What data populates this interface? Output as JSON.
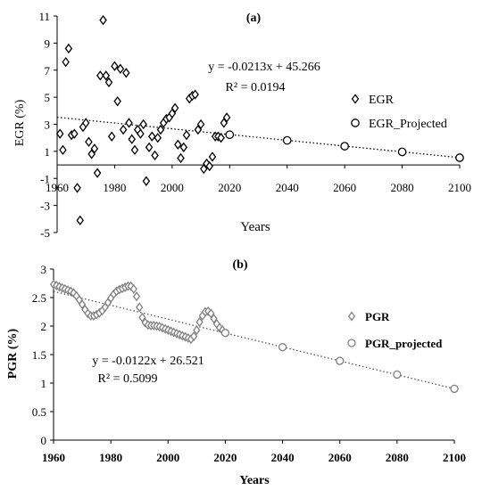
{
  "chart_data": [
    {
      "panel": "(a)",
      "type": "scatter",
      "xlabel": "Years",
      "ylabel": "EGR (%)",
      "xlim": [
        1960,
        2100
      ],
      "ylim": [
        -5,
        11
      ],
      "xticks": [
        "1960",
        "1980",
        "2000",
        "2020",
        "2040",
        "2060",
        "2080",
        "2100"
      ],
      "yticks": [
        "11",
        "9",
        "7",
        "5",
        "3",
        "1",
        "-1",
        "-3",
        "-5"
      ],
      "xticks_position": "at y = 0",
      "grid": false,
      "legend_position": "right",
      "trendline": {
        "slope": -0.0213,
        "intercept": 45.266,
        "style": "dotted"
      },
      "equation": "y = -0.0213x + 45.266",
      "r2": "R² = 0.0194",
      "series": [
        {
          "name": "EGR",
          "marker": "diamond",
          "points": [
            [
              1961,
              2.3
            ],
            [
              1962,
              1.1
            ],
            [
              1963,
              7.6
            ],
            [
              1964,
              8.6
            ],
            [
              1965,
              2.2
            ],
            [
              1966,
              2.3
            ],
            [
              1967,
              -1.7
            ],
            [
              1968,
              -4.1
            ],
            [
              1969,
              2.8
            ],
            [
              1970,
              3.1
            ],
            [
              1971,
              1.7
            ],
            [
              1972,
              0.8
            ],
            [
              1973,
              1.2
            ],
            [
              1974,
              -0.6
            ],
            [
              1975,
              6.6
            ],
            [
              1976,
              10.7
            ],
            [
              1977,
              6.6
            ],
            [
              1978,
              6.1
            ],
            [
              1979,
              2.1
            ],
            [
              1980,
              7.3
            ],
            [
              1981,
              4.7
            ],
            [
              1982,
              7.1
            ],
            [
              1983,
              2.6
            ],
            [
              1984,
              6.8
            ],
            [
              1985,
              3.1
            ],
            [
              1986,
              1.9
            ],
            [
              1987,
              1.1
            ],
            [
              1988,
              2.6
            ],
            [
              1989,
              2.3
            ],
            [
              1990,
              3.0
            ],
            [
              1991,
              -1.2
            ],
            [
              1992,
              1.3
            ],
            [
              1993,
              2.1
            ],
            [
              1994,
              0.7
            ],
            [
              1995,
              2.0
            ],
            [
              1996,
              2.6
            ],
            [
              1997,
              3.1
            ],
            [
              1998,
              3.4
            ],
            [
              1999,
              3.5
            ],
            [
              2000,
              3.8
            ],
            [
              2001,
              4.2
            ],
            [
              2002,
              1.5
            ],
            [
              2003,
              0.5
            ],
            [
              2004,
              1.3
            ],
            [
              2005,
              2.2
            ],
            [
              2006,
              4.9
            ],
            [
              2007,
              5.1
            ],
            [
              2008,
              5.2
            ],
            [
              2009,
              2.6
            ],
            [
              2010,
              3.0
            ],
            [
              2011,
              -0.3
            ],
            [
              2012,
              0.1
            ],
            [
              2013,
              -0.1
            ],
            [
              2014,
              0.6
            ],
            [
              2015,
              2.1
            ],
            [
              2016,
              2.1
            ],
            [
              2017,
              2.0
            ],
            [
              2018,
              3.1
            ],
            [
              2019,
              3.5
            ]
          ]
        },
        {
          "name": "EGR_Projected",
          "marker": "circle",
          "points": [
            [
              2020,
              2.23
            ],
            [
              2040,
              1.81
            ],
            [
              2060,
              1.38
            ],
            [
              2080,
              0.96
            ],
            [
              2100,
              0.53
            ]
          ]
        }
      ]
    },
    {
      "panel": "(b)",
      "type": "scatter",
      "xlabel": "Years",
      "ylabel": "PGR (%)",
      "xlim": [
        1960,
        2100
      ],
      "ylim": [
        0,
        3
      ],
      "xticks": [
        "1960",
        "1980",
        "2000",
        "2020",
        "2040",
        "2060",
        "2080",
        "2100"
      ],
      "yticks": [
        "3",
        "2.5",
        "2",
        "1.5",
        "1",
        "0.5",
        "0"
      ],
      "grid": false,
      "legend_position": "right",
      "trendline": {
        "slope": -0.0122,
        "intercept": 26.521,
        "style": "dotted"
      },
      "equation": "y = -0.0122x + 26.521",
      "r2": "R² = 0.5099",
      "series": [
        {
          "name": "PGR",
          "marker": "diamond",
          "points": [
            [
              1960,
              2.73
            ],
            [
              1961,
              2.71
            ],
            [
              1962,
              2.69
            ],
            [
              1963,
              2.67
            ],
            [
              1964,
              2.65
            ],
            [
              1965,
              2.63
            ],
            [
              1966,
              2.61
            ],
            [
              1967,
              2.58
            ],
            [
              1968,
              2.53
            ],
            [
              1969,
              2.46
            ],
            [
              1970,
              2.38
            ],
            [
              1971,
              2.29
            ],
            [
              1972,
              2.22
            ],
            [
              1973,
              2.18
            ],
            [
              1974,
              2.18
            ],
            [
              1975,
              2.2
            ],
            [
              1976,
              2.23
            ],
            [
              1977,
              2.27
            ],
            [
              1978,
              2.33
            ],
            [
              1979,
              2.41
            ],
            [
              1980,
              2.49
            ],
            [
              1981,
              2.56
            ],
            [
              1982,
              2.61
            ],
            [
              1983,
              2.64
            ],
            [
              1984,
              2.66
            ],
            [
              1985,
              2.68
            ],
            [
              1986,
              2.7
            ],
            [
              1987,
              2.7
            ],
            [
              1988,
              2.65
            ],
            [
              1989,
              2.52
            ],
            [
              1990,
              2.33
            ],
            [
              1991,
              2.15
            ],
            [
              1992,
              2.06
            ],
            [
              1993,
              2.02
            ],
            [
              1994,
              2.01
            ],
            [
              1995,
              2.01
            ],
            [
              1996,
              2.0
            ],
            [
              1997,
              1.99
            ],
            [
              1998,
              1.97
            ],
            [
              1999,
              1.95
            ],
            [
              2000,
              1.93
            ],
            [
              2001,
              1.91
            ],
            [
              2002,
              1.89
            ],
            [
              2003,
              1.87
            ],
            [
              2004,
              1.85
            ],
            [
              2005,
              1.83
            ],
            [
              2006,
              1.81
            ],
            [
              2007,
              1.79
            ],
            [
              2008,
              1.77
            ],
            [
              2009,
              1.82
            ],
            [
              2010,
              1.93
            ],
            [
              2011,
              2.07
            ],
            [
              2012,
              2.18
            ],
            [
              2013,
              2.25
            ],
            [
              2014,
              2.26
            ],
            [
              2015,
              2.22
            ],
            [
              2016,
              2.13
            ],
            [
              2017,
              2.04
            ],
            [
              2018,
              1.97
            ],
            [
              2019,
              1.93
            ]
          ]
        },
        {
          "name": "PGR_projected",
          "marker": "circle",
          "points": [
            [
              2020,
              1.88
            ],
            [
              2040,
              1.63
            ],
            [
              2060,
              1.39
            ],
            [
              2080,
              1.15
            ],
            [
              2100,
              0.9
            ]
          ]
        }
      ]
    }
  ]
}
